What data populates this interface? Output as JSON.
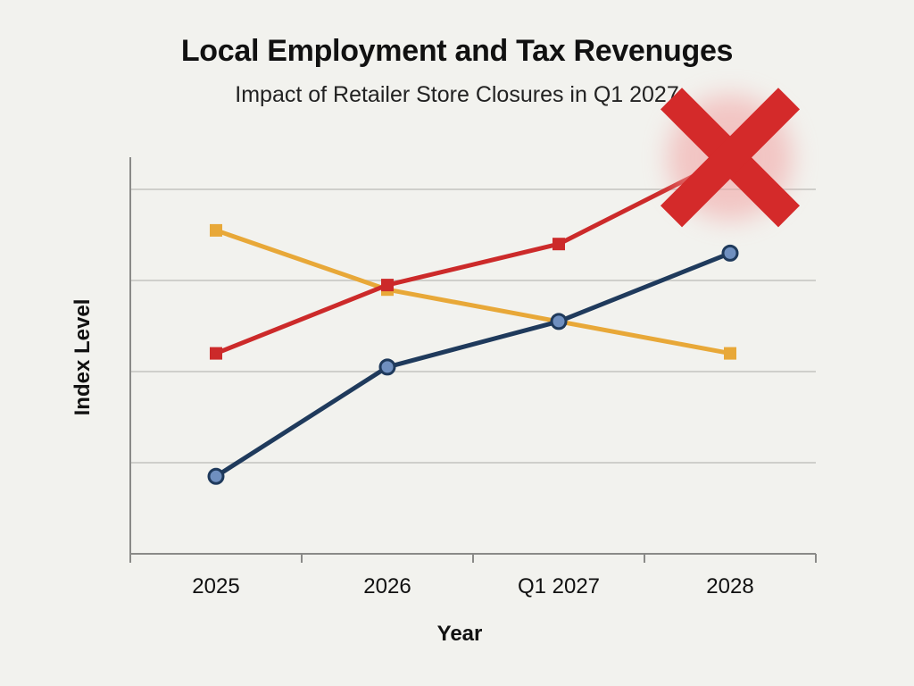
{
  "chart_data": {
    "type": "line",
    "title": "Local Employment and Tax Revenuges",
    "subtitle": "Impact of Retailer Store Closures in Q1 2027",
    "xlabel": "Year",
    "ylabel": "Index Level",
    "categories": [
      "2025",
      "2026",
      "Q1 2027",
      "2028"
    ],
    "ylim": [
      0,
      5
    ],
    "grid": true,
    "series": [
      {
        "color": "#e8a838",
        "marker": "square",
        "values": [
          3.55,
          2.9,
          2.55,
          2.2
        ]
      },
      {
        "color": "#cc2a2a",
        "marker": "square",
        "values": [
          2.2,
          2.95,
          3.4,
          4.35
        ]
      },
      {
        "color": "#1f3a5c",
        "marker": "circle",
        "values": [
          0.85,
          2.05,
          2.55,
          3.3
        ]
      }
    ],
    "annotations": [
      {
        "type": "cross-mark",
        "color": "#d42a2a",
        "category": "2028",
        "y": 4.35
      }
    ]
  }
}
